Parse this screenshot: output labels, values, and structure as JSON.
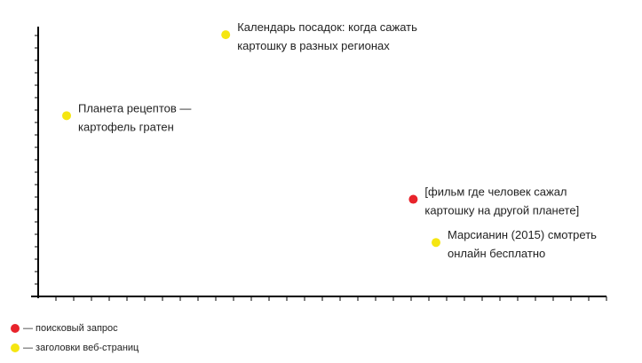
{
  "chart_data": {
    "type": "scatter",
    "title": "",
    "xlabel": "",
    "ylabel": "",
    "xlim": [
      0,
      100
    ],
    "ylim": [
      0,
      100
    ],
    "grid": false,
    "legend_position": "bottom-left",
    "series": [
      {
        "name": "— поисковый запрос",
        "color": "#e8232b",
        "points": [
          {
            "x": 66,
            "y": 36,
            "label": [
              "[фильм где человек сажал",
              "картошку на другой планете]"
            ]
          }
        ]
      },
      {
        "name": "— заголовки веб-страниц",
        "color": "#f5e611",
        "points": [
          {
            "x": 33,
            "y": 97,
            "label": [
              "Календарь посадок: когда сажать",
              "картошку в разных регионах"
            ]
          },
          {
            "x": 5,
            "y": 67,
            "label": [
              "Планета рецептов —",
              "картофель гратен"
            ]
          },
          {
            "x": 70,
            "y": 20,
            "label": [
              "Марсианин (2015) смотреть",
              "онлайн бесплатно"
            ]
          }
        ]
      }
    ]
  },
  "legend": {
    "query_label": "— поисковый запрос",
    "pages_label": "— заголовки веб-страниц",
    "query_color": "#e8232b",
    "pages_color": "#f5e611"
  }
}
